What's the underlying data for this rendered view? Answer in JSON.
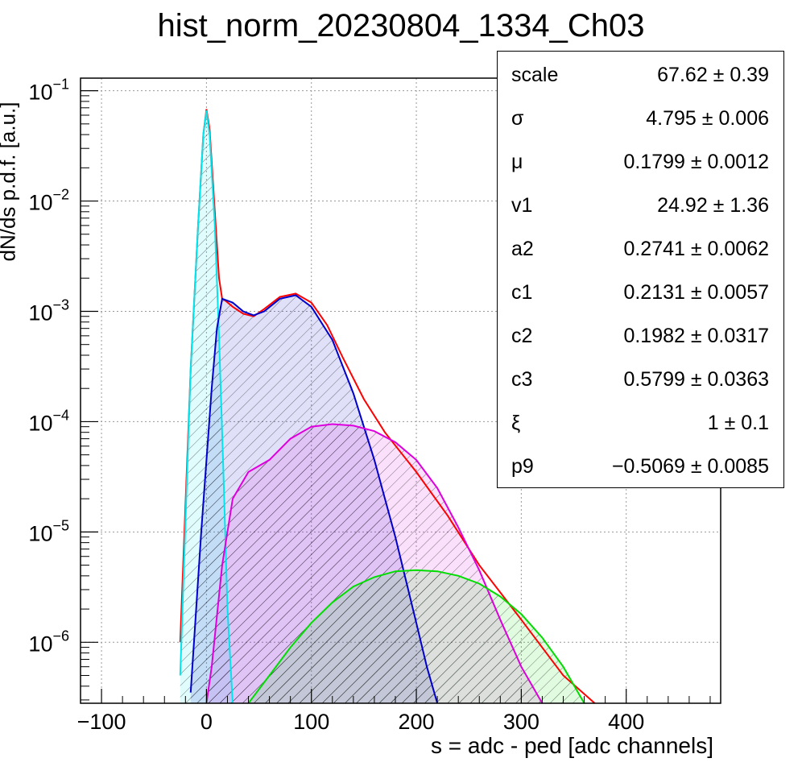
{
  "chart_data": {
    "type": "line",
    "title": "hist_norm_20230804_1334_Ch03",
    "xlabel": "s = adc - ped [adc channels]",
    "ylabel": "dN/ds p.d.f. [a.u.]",
    "xlim": [
      -120,
      490
    ],
    "ylim": [
      2.8e-07,
      0.13
    ],
    "yscale": "log",
    "grid": true,
    "xticks": [
      -100,
      0,
      100,
      200,
      300,
      400
    ],
    "yticks": [
      {
        "base": "10",
        "exp": "−1",
        "value": 0.1
      },
      {
        "base": "10",
        "exp": "−2",
        "value": 0.01
      },
      {
        "base": "10",
        "exp": "−3",
        "value": 0.001
      },
      {
        "base": "10",
        "exp": "−4",
        "value": 0.0001
      },
      {
        "base": "10",
        "exp": "−5",
        "value": 1e-05
      },
      {
        "base": "10",
        "exp": "−6",
        "value": 1e-06
      }
    ],
    "series": [
      {
        "color": "#ff0000",
        "x": [
          -25,
          -15,
          -8,
          -3,
          0,
          3,
          8,
          12,
          15,
          18,
          25,
          35,
          45,
          55,
          70,
          85,
          100,
          115,
          130,
          150,
          170,
          200,
          230,
          260,
          300,
          340,
          370
        ],
        "y": [
          1e-06,
          0.0003,
          0.006,
          0.04,
          0.068,
          0.045,
          0.008,
          0.002,
          0.0013,
          0.00125,
          0.0011,
          0.00095,
          0.0009,
          0.00105,
          0.00135,
          0.00145,
          0.0012,
          0.00075,
          0.00038,
          0.00016,
          8e-05,
          3.5e-05,
          1.4e-05,
          5e-06,
          1.6e-06,
          5e-07,
          2.8e-07
        ]
      },
      {
        "color": "#00e5ee",
        "x": [
          -25,
          -15,
          -8,
          -3,
          0,
          3,
          8,
          12,
          16,
          20,
          25
        ],
        "y": [
          5e-07,
          0.0003,
          0.006,
          0.04,
          0.066,
          0.04,
          0.006,
          0.0006,
          4e-05,
          2e-06,
          2.8e-07
        ]
      },
      {
        "color": "#0000cc",
        "x": [
          -15,
          -5,
          5,
          10,
          15,
          25,
          35,
          45,
          55,
          70,
          85,
          100,
          120,
          140,
          160,
          180,
          200,
          210,
          220
        ],
        "y": [
          3.5e-07,
          1e-05,
          0.0002,
          0.0007,
          0.0013,
          0.0012,
          0.001,
          0.00092,
          0.001,
          0.0013,
          0.0014,
          0.0011,
          0.00055,
          0.00018,
          4.5e-05,
          9e-06,
          1.5e-06,
          6e-07,
          2.8e-07
        ]
      },
      {
        "color": "#dd00dd",
        "x": [
          0,
          5,
          15,
          25,
          40,
          60,
          80,
          100,
          120,
          140,
          160,
          180,
          200,
          220,
          240,
          260,
          280,
          300,
          320
        ],
        "y": [
          2.8e-07,
          6e-07,
          5e-06,
          2e-05,
          3.5e-05,
          4.5e-05,
          7e-05,
          9e-05,
          9.5e-05,
          9.2e-05,
          8.2e-05,
          6.5e-05,
          4.5e-05,
          2.5e-05,
          1.1e-05,
          4.5e-06,
          1.6e-06,
          6e-07,
          2.8e-07
        ]
      },
      {
        "color": "#00dd00",
        "x": [
          40,
          60,
          80,
          100,
          120,
          140,
          160,
          180,
          200,
          220,
          240,
          260,
          280,
          300,
          320,
          340,
          360
        ],
        "y": [
          2.8e-07,
          5e-07,
          9e-07,
          1.5e-06,
          2.3e-06,
          3.2e-06,
          3.9e-06,
          4.4e-06,
          4.5e-06,
          4.4e-06,
          4e-06,
          3.4e-06,
          2.6e-06,
          1.8e-06,
          1.1e-06,
          6e-07,
          2.8e-07
        ]
      }
    ]
  },
  "stats": [
    {
      "name": "scale",
      "value": "67.62 ± 0.39"
    },
    {
      "name": "σ",
      "value": "4.795 ± 0.006"
    },
    {
      "name": "μ",
      "value": "0.1799 ± 0.0012"
    },
    {
      "name": "v1",
      "value": "24.92 ± 1.36"
    },
    {
      "name": "a2",
      "value": "0.2741 ± 0.0062"
    },
    {
      "name": "c1",
      "value": "0.2131 ± 0.0057"
    },
    {
      "name": "c2",
      "value": "0.1982 ± 0.0317"
    },
    {
      "name": "c3",
      "value": "0.5799 ± 0.0363"
    },
    {
      "name": "ξ",
      "value": "1 ± 0.1"
    },
    {
      "name": "p9",
      "value": "−0.5069 ± 0.0085"
    }
  ]
}
